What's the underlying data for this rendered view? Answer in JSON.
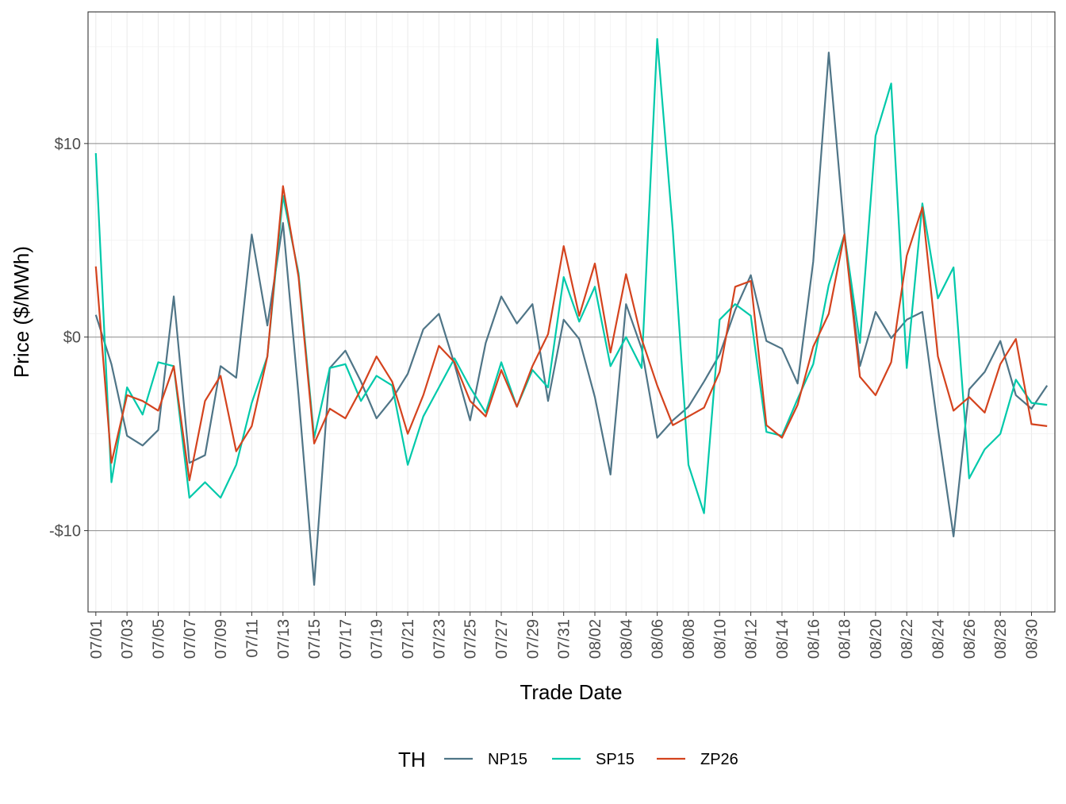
{
  "chart_data": {
    "type": "line",
    "title": "",
    "xlabel": "Trade Date",
    "ylabel": "Price ($/MWh)",
    "ylim": [
      -14.2,
      16.8
    ],
    "y_ticks": [
      -10,
      0,
      10
    ],
    "y_tick_labels": [
      "-$10",
      "$0",
      "$10"
    ],
    "grid": true,
    "legend": {
      "title": "TH",
      "placement": "bottom"
    },
    "x_tick_labels": [
      "07/01",
      "07/03",
      "07/05",
      "07/07",
      "07/09",
      "07/11",
      "07/13",
      "07/15",
      "07/17",
      "07/19",
      "07/21",
      "07/23",
      "07/25",
      "07/27",
      "07/29",
      "07/31",
      "08/02",
      "08/04",
      "08/06",
      "08/08",
      "08/10",
      "08/12",
      "08/14",
      "08/16",
      "08/18",
      "08/20",
      "08/22",
      "08/24",
      "08/26",
      "08/28",
      "08/30"
    ],
    "x": [
      "07/01",
      "07/02",
      "07/03",
      "07/04",
      "07/05",
      "07/06",
      "07/07",
      "07/08",
      "07/09",
      "07/10",
      "07/11",
      "07/12",
      "07/13",
      "07/14",
      "07/15",
      "07/16",
      "07/17",
      "07/18",
      "07/19",
      "07/20",
      "07/21",
      "07/22",
      "07/23",
      "07/24",
      "07/25",
      "07/26",
      "07/27",
      "07/28",
      "07/29",
      "07/30",
      "07/31",
      "08/01",
      "08/02",
      "08/03",
      "08/04",
      "08/05",
      "08/06",
      "08/07",
      "08/08",
      "08/09",
      "08/10",
      "08/11",
      "08/12",
      "08/13",
      "08/14",
      "08/15",
      "08/16",
      "08/17",
      "08/18",
      "08/19",
      "08/20",
      "08/21",
      "08/22",
      "08/23",
      "08/24",
      "08/25",
      "08/26",
      "08/27",
      "08/28",
      "08/29",
      "08/30",
      "08/31"
    ],
    "series": [
      {
        "name": "NP15",
        "color": "#4f7587",
        "values": [
          1.15,
          -1.4,
          -5.1,
          -5.6,
          -4.8,
          2.1,
          -6.5,
          -6.1,
          -1.5,
          -2.1,
          5.3,
          0.6,
          5.9,
          -3.0,
          -12.8,
          -1.6,
          -0.7,
          -2.3,
          -4.2,
          -3.2,
          -1.9,
          0.4,
          1.2,
          -1.4,
          -4.3,
          -0.3,
          2.1,
          0.7,
          1.7,
          -3.3,
          0.9,
          -0.1,
          -3.1,
          -7.1,
          1.7,
          -0.6,
          -5.2,
          -4.3,
          -3.6,
          -2.3,
          -0.9,
          1.4,
          3.2,
          -0.2,
          -0.6,
          -2.4,
          3.9,
          14.7,
          5.4,
          -1.5,
          1.3,
          -0.05,
          0.9,
          1.3,
          -4.7,
          -10.3,
          -2.7,
          -1.8,
          -0.2,
          -3.0,
          -3.7,
          -2.5
        ]
      },
      {
        "name": "SP15",
        "color": "#00c9aa",
        "values": [
          9.5,
          -7.5,
          -2.6,
          -4.0,
          -1.3,
          -1.5,
          -8.3,
          -7.5,
          -8.3,
          -6.6,
          -3.4,
          -1.0,
          7.3,
          3.3,
          -5.2,
          -1.6,
          -1.4,
          -3.3,
          -2.0,
          -2.5,
          -6.6,
          -4.1,
          -2.6,
          -1.1,
          -2.6,
          -3.9,
          -1.3,
          -3.6,
          -1.7,
          -2.6,
          3.1,
          0.8,
          2.6,
          -1.5,
          0.0,
          -1.6,
          15.4,
          5.5,
          -6.6,
          -9.1,
          0.9,
          1.7,
          1.1,
          -4.9,
          -5.1,
          -3.2,
          -1.4,
          2.7,
          5.3,
          -0.3,
          10.4,
          13.1,
          -1.6,
          6.9,
          2.0,
          3.6,
          -7.3,
          -5.8,
          -5.0,
          -2.2,
          -3.4,
          -3.5
        ]
      },
      {
        "name": "ZP26",
        "color": "#d4431e",
        "values": [
          3.65,
          -6.5,
          -3.0,
          -3.3,
          -3.8,
          -1.5,
          -7.4,
          -3.3,
          -2.0,
          -5.9,
          -4.6,
          -1.0,
          7.8,
          3.1,
          -5.5,
          -3.7,
          -4.2,
          -2.7,
          -1.0,
          -2.3,
          -5.0,
          -3.0,
          -0.45,
          -1.3,
          -3.3,
          -4.1,
          -1.7,
          -3.6,
          -1.5,
          0.15,
          4.7,
          1.1,
          3.8,
          -0.8,
          3.25,
          -0.1,
          -2.5,
          -4.55,
          -4.1,
          -3.65,
          -1.8,
          2.6,
          2.9,
          -4.55,
          -5.2,
          -3.5,
          -0.5,
          1.2,
          5.3,
          -2.05,
          -3.0,
          -1.3,
          4.2,
          6.7,
          -1.0,
          -3.8,
          -3.1,
          -3.9,
          -1.4,
          -0.1,
          -4.5,
          -4.6
        ]
      }
    ]
  }
}
